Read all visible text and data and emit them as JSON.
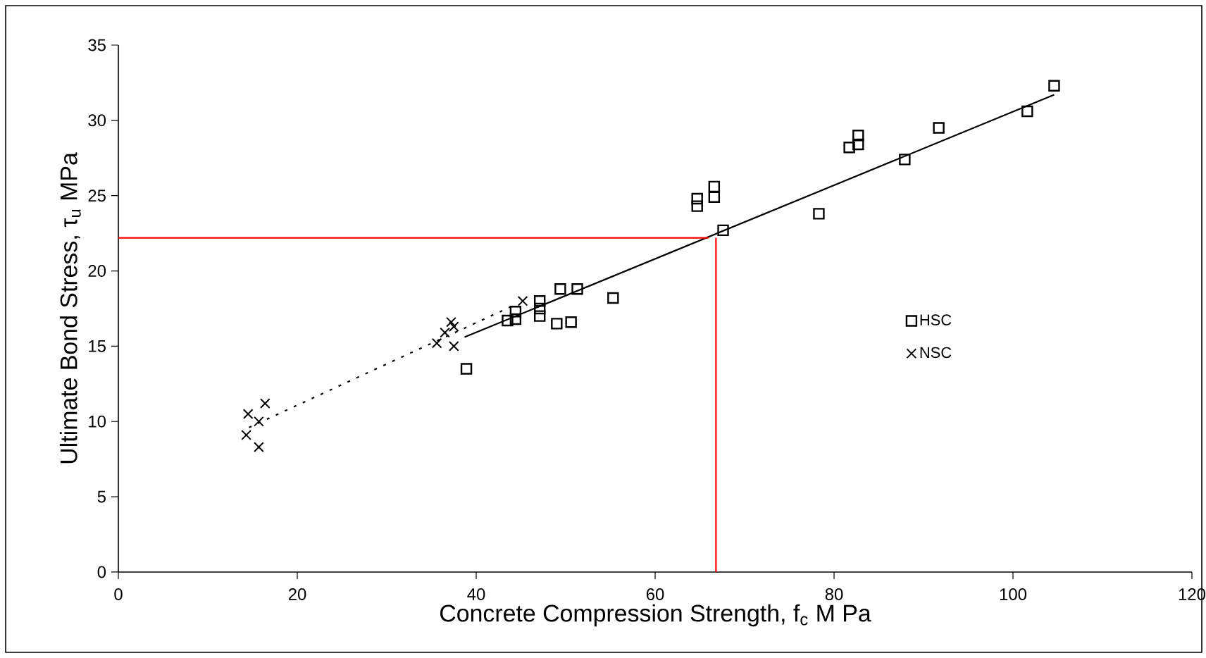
{
  "chart_data": {
    "type": "scatter",
    "xlabel": "Concrete Compression Strength, f$_{c}$    M Pa",
    "ylabel": "Ultimate Bond Stress, τ$_{u}$    MPa",
    "xlim": [
      0,
      120
    ],
    "ylim": [
      0,
      35
    ],
    "xticks": [
      0,
      20,
      40,
      60,
      80,
      100,
      120
    ],
    "yticks": [
      0,
      5,
      10,
      15,
      20,
      25,
      30,
      35
    ],
    "grid": false,
    "legend": "right",
    "series": [
      {
        "name": "HSC",
        "marker": "square",
        "color": "#000000",
        "x": [
          38.9,
          43.5,
          44.4,
          44.4,
          47.1,
          47.1,
          47.1,
          49.0,
          50.6,
          49.4,
          51.3,
          55.3,
          67.6,
          64.7,
          64.7,
          66.6,
          66.6,
          78.3,
          81.7,
          82.7,
          82.7,
          87.9,
          91.7,
          101.6,
          104.6
        ],
        "values": [
          13.5,
          16.7,
          17.3,
          16.8,
          18.0,
          17.5,
          17.0,
          16.5,
          16.6,
          18.8,
          18.8,
          18.2,
          22.7,
          24.3,
          24.8,
          25.6,
          24.9,
          23.8,
          28.2,
          29.0,
          28.4,
          27.4,
          29.5,
          30.6,
          32.3
        ]
      },
      {
        "name": "NSC",
        "marker": "cross",
        "color": "#000000",
        "x": [
          14.5,
          16.4,
          15.7,
          14.3,
          15.7,
          35.6,
          37.5,
          36.5,
          37.2,
          37.5,
          45.2
        ],
        "values": [
          10.5,
          11.2,
          10.0,
          9.1,
          8.3,
          15.2,
          15.0,
          15.9,
          16.6,
          16.3,
          18.0
        ]
      },
      {
        "type": "line",
        "marker": "none",
        "line_style": "solid",
        "color": "#000000",
        "x": [
          38.7,
          104.6
        ],
        "values": [
          15.6,
          31.7
        ]
      },
      {
        "type": "line",
        "marker": "none",
        "line_style": "dotted",
        "color": "#000000",
        "x": [
          14.6,
          43.8
        ],
        "values": [
          9.6,
          17.6
        ]
      },
      {
        "type": "line",
        "marker": "none",
        "line_style": "solid",
        "color": "#ff0000",
        "x": [
          0,
          66.0
        ],
        "values": [
          22.2,
          22.2
        ]
      },
      {
        "type": "line",
        "marker": "none",
        "line_style": "solid",
        "color": "#ff0000",
        "x": [
          66.8,
          66.8
        ],
        "values": [
          22.2,
          0
        ]
      }
    ]
  }
}
